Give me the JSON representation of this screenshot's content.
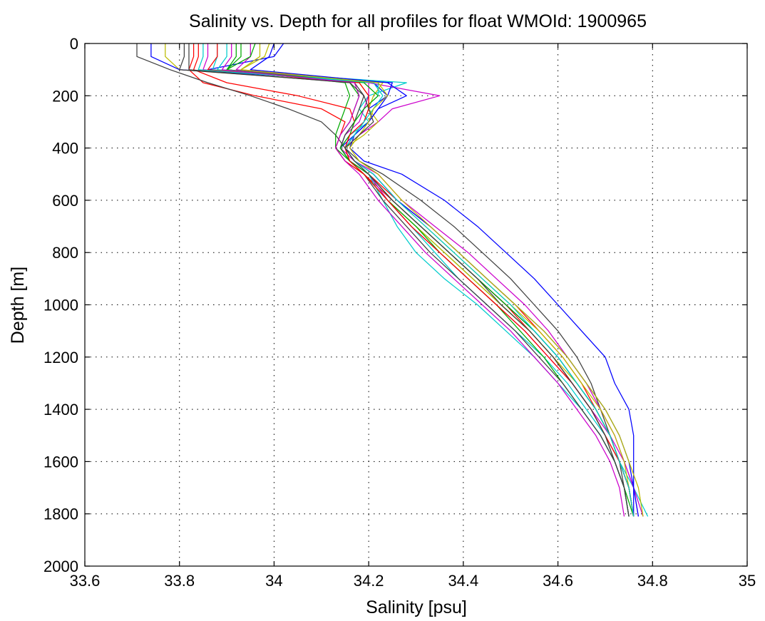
{
  "chart_data": {
    "type": "line",
    "title": "Salinity vs. Depth for all profiles for float WMOId: 1900965",
    "xlabel": "Salinity [psu]",
    "ylabel": "Depth [m]",
    "xlim": [
      33.6,
      35
    ],
    "ylim": [
      0,
      2000
    ],
    "y_reversed": true,
    "grid": true,
    "x_ticks": [
      33.6,
      33.8,
      34,
      34.2,
      34.4,
      34.6,
      34.8,
      35
    ],
    "x_tick_labels": [
      "33.6",
      "33.8",
      "34",
      "34.2",
      "34.4",
      "34.6",
      "34.8",
      "35"
    ],
    "y_ticks": [
      0,
      200,
      400,
      600,
      800,
      1000,
      1200,
      1400,
      1600,
      1800,
      2000
    ],
    "y_tick_labels": [
      "0",
      "200",
      "400",
      "600",
      "800",
      "1000",
      "1200",
      "1400",
      "1600",
      "1800",
      "2000"
    ],
    "colors": [
      "#0000ff",
      "#00aa00",
      "#ff0000",
      "#00cccc",
      "#cc00cc",
      "#bbbb00",
      "#404040"
    ],
    "profile_depths": [
      0,
      50,
      100,
      150,
      200,
      250,
      300,
      350,
      400,
      450,
      500,
      600,
      700,
      800,
      900,
      1000,
      1100,
      1200,
      1300,
      1400,
      1500,
      1600,
      1700,
      1810
    ],
    "series": [
      {
        "values": [
          34.02,
          34.0,
          33.86,
          34.21,
          34.24,
          34.22,
          34.2,
          34.17,
          34.14,
          34.16,
          34.2,
          34.25,
          34.31,
          34.37,
          34.43,
          34.49,
          34.55,
          34.6,
          34.64,
          34.68,
          34.71,
          34.73,
          34.75,
          34.76
        ]
      },
      {
        "values": [
          33.92,
          33.92,
          33.9,
          34.16,
          34.18,
          34.17,
          34.16,
          34.14,
          34.13,
          34.15,
          34.19,
          34.24,
          34.3,
          34.36,
          34.42,
          34.48,
          34.54,
          34.59,
          34.63,
          34.67,
          34.7,
          34.72,
          34.74,
          34.75
        ]
      },
      {
        "values": [
          33.83,
          33.83,
          33.82,
          33.85,
          33.96,
          34.1,
          34.15,
          34.14,
          34.13,
          34.15,
          34.19,
          34.25,
          34.31,
          34.37,
          34.43,
          34.49,
          34.54,
          34.59,
          34.63,
          34.67,
          34.7,
          34.73,
          34.75,
          34.76
        ]
      },
      {
        "values": [
          33.88,
          33.88,
          33.87,
          34.28,
          34.2,
          34.18,
          34.2,
          34.16,
          34.14,
          34.16,
          34.2,
          34.24,
          34.29,
          34.34,
          34.39,
          34.45,
          34.51,
          34.57,
          34.62,
          34.66,
          34.7,
          34.73,
          34.76,
          34.79
        ]
      },
      {
        "values": [
          33.95,
          33.95,
          33.92,
          34.2,
          34.35,
          34.25,
          34.22,
          34.18,
          34.15,
          34.16,
          34.2,
          34.24,
          34.29,
          34.35,
          34.41,
          34.47,
          34.53,
          34.58,
          34.63,
          34.67,
          34.71,
          34.74,
          34.76,
          34.78
        ]
      },
      {
        "values": [
          33.77,
          33.77,
          33.8,
          34.18,
          34.2,
          34.2,
          34.22,
          34.19,
          34.15,
          34.16,
          34.19,
          34.24,
          34.3,
          34.36,
          34.42,
          34.48,
          34.54,
          34.59,
          34.64,
          34.68,
          34.71,
          34.73,
          34.75,
          34.76
        ]
      },
      {
        "values": [
          33.71,
          33.71,
          33.78,
          33.86,
          33.95,
          34.03,
          34.1,
          34.13,
          34.15,
          34.18,
          34.23,
          34.31,
          34.38,
          34.44,
          34.5,
          34.55,
          34.6,
          34.64,
          34.67,
          34.69,
          34.71,
          34.73,
          34.74,
          34.75
        ]
      },
      {
        "values": [
          33.74,
          33.74,
          33.8,
          34.25,
          34.24,
          34.2,
          34.19,
          34.17,
          34.16,
          34.19,
          34.27,
          34.36,
          34.43,
          34.49,
          34.55,
          34.6,
          34.65,
          34.7,
          34.72,
          34.75,
          34.76,
          34.76,
          34.76,
          34.76
        ]
      },
      {
        "values": [
          33.96,
          33.95,
          33.9,
          34.15,
          34.16,
          34.15,
          34.14,
          34.13,
          34.13,
          34.16,
          34.19,
          34.24,
          34.3,
          34.35,
          34.41,
          34.47,
          34.52,
          34.57,
          34.61,
          34.65,
          34.69,
          34.72,
          34.74,
          34.76
        ]
      },
      {
        "values": [
          33.84,
          33.84,
          33.83,
          33.9,
          34.05,
          34.16,
          34.17,
          34.16,
          34.15,
          34.16,
          34.2,
          34.26,
          34.33,
          34.39,
          34.45,
          34.51,
          34.56,
          34.61,
          34.65,
          34.68,
          34.71,
          34.73,
          34.75,
          34.76
        ]
      },
      {
        "values": [
          33.9,
          33.9,
          33.88,
          34.22,
          34.22,
          34.19,
          34.17,
          34.15,
          34.14,
          34.16,
          34.2,
          34.23,
          34.26,
          34.3,
          34.36,
          34.43,
          34.49,
          34.55,
          34.6,
          34.65,
          34.69,
          34.72,
          34.74,
          34.75
        ]
      },
      {
        "values": [
          33.86,
          33.86,
          33.85,
          34.2,
          34.2,
          34.19,
          34.18,
          34.15,
          34.14,
          34.17,
          34.22,
          34.27,
          34.34,
          34.41,
          34.47,
          34.53,
          34.58,
          34.62,
          34.66,
          34.69,
          34.72,
          34.74,
          34.76,
          34.77
        ]
      },
      {
        "values": [
          33.99,
          33.98,
          33.93,
          34.23,
          34.21,
          34.2,
          34.19,
          34.17,
          34.15,
          34.17,
          34.21,
          34.26,
          34.32,
          34.38,
          34.44,
          34.5,
          34.56,
          34.61,
          34.65,
          34.69,
          34.72,
          34.74,
          34.75,
          34.76
        ]
      },
      {
        "values": [
          33.81,
          33.81,
          33.8,
          34.17,
          34.19,
          34.18,
          34.17,
          34.15,
          34.14,
          34.16,
          34.19,
          34.23,
          34.28,
          34.33,
          34.39,
          34.45,
          34.51,
          34.56,
          34.61,
          34.65,
          34.69,
          34.72,
          34.74,
          34.75
        ]
      },
      {
        "values": [
          34.0,
          33.99,
          33.95,
          34.24,
          34.28,
          34.22,
          34.2,
          34.17,
          34.15,
          34.17,
          34.21,
          34.26,
          34.33,
          34.39,
          34.45,
          34.51,
          34.57,
          34.62,
          34.66,
          34.7,
          34.73,
          34.75,
          34.76,
          34.77
        ]
      },
      {
        "values": [
          33.93,
          33.93,
          33.9,
          34.19,
          34.22,
          34.19,
          34.17,
          34.16,
          34.14,
          34.16,
          34.2,
          34.25,
          34.31,
          34.37,
          34.43,
          34.49,
          34.55,
          34.6,
          34.64,
          34.68,
          34.71,
          34.73,
          34.75,
          34.76
        ]
      },
      {
        "values": [
          33.88,
          33.88,
          33.86,
          34.18,
          34.2,
          34.2,
          34.19,
          34.16,
          34.15,
          34.16,
          34.19,
          34.24,
          34.29,
          34.35,
          34.41,
          34.47,
          34.53,
          34.58,
          34.63,
          34.67,
          34.7,
          34.73,
          34.75,
          34.76
        ]
      },
      {
        "values": [
          33.85,
          33.85,
          33.84,
          34.21,
          34.23,
          34.21,
          34.19,
          34.17,
          34.15,
          34.17,
          34.21,
          34.26,
          34.32,
          34.38,
          34.44,
          34.5,
          34.55,
          34.6,
          34.64,
          34.68,
          34.71,
          34.73,
          34.75,
          34.76
        ]
      },
      {
        "values": [
          33.91,
          33.91,
          33.89,
          34.17,
          34.18,
          34.17,
          34.16,
          34.14,
          34.13,
          34.15,
          34.18,
          34.22,
          34.27,
          34.32,
          34.38,
          34.44,
          34.5,
          34.55,
          34.6,
          34.64,
          34.68,
          34.71,
          34.73,
          34.74
        ]
      },
      {
        "values": [
          33.97,
          33.97,
          33.93,
          34.22,
          34.24,
          34.21,
          34.2,
          34.18,
          34.16,
          34.18,
          34.22,
          34.27,
          34.33,
          34.39,
          34.45,
          34.51,
          34.57,
          34.62,
          34.66,
          34.7,
          34.73,
          34.75,
          34.77,
          34.78
        ]
      },
      {
        "values": [
          33.82,
          33.82,
          33.82,
          34.16,
          34.19,
          34.2,
          34.21,
          34.18,
          34.15,
          34.17,
          34.2,
          34.25,
          34.31,
          34.37,
          34.43,
          34.48,
          34.54,
          34.59,
          34.63,
          34.67,
          34.7,
          34.72,
          34.74,
          34.75
        ]
      }
    ]
  }
}
